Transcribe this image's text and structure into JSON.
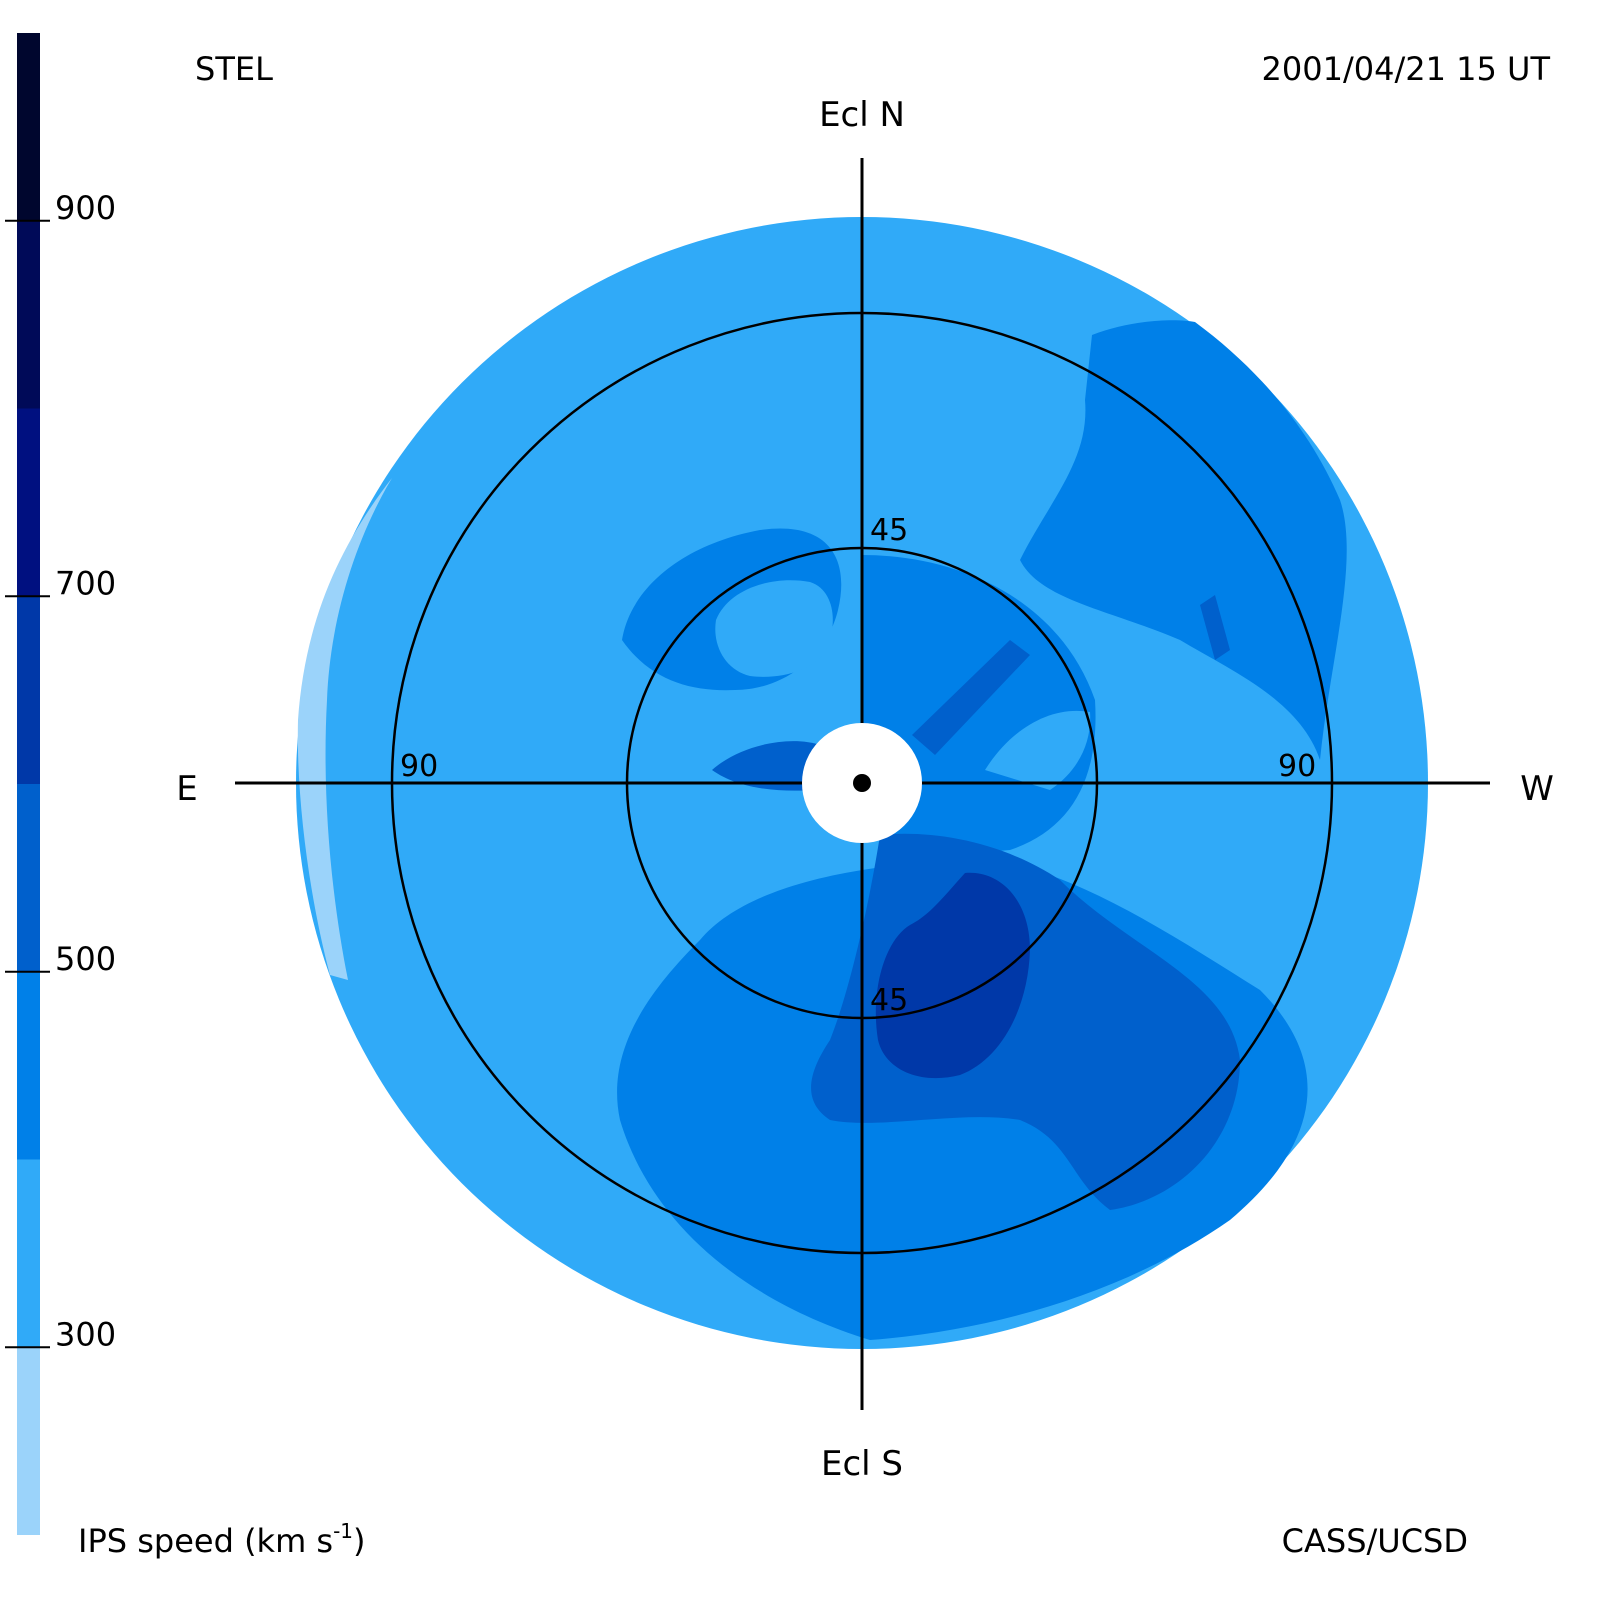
{
  "header": {
    "station": "STEL",
    "timestamp": "2001/04/21 15 UT"
  },
  "footer": {
    "credit": "CASS/UCSD"
  },
  "colorbar": {
    "label_main": "IPS speed (km s",
    "label_exp": "-1",
    "label_close": ")",
    "ticks": [
      "900",
      "700",
      "500",
      "300"
    ],
    "tick_values": [
      900,
      700,
      500,
      300
    ],
    "range": [
      200,
      1000
    ],
    "bands": [
      {
        "from": 200,
        "to": 300,
        "color": "#9bd3fa"
      },
      {
        "from": 300,
        "to": 400,
        "color": "#30aaf8"
      },
      {
        "from": 400,
        "to": 500,
        "color": "#0080e8"
      },
      {
        "from": 500,
        "to": 600,
        "color": "#0060cc"
      },
      {
        "from": 600,
        "to": 700,
        "color": "#0038a8"
      },
      {
        "from": 700,
        "to": 800,
        "color": "#001080"
      },
      {
        "from": 800,
        "to": 900,
        "color": "#000a58"
      },
      {
        "from": 900,
        "to": 1000,
        "color": "#00062e"
      }
    ]
  },
  "chart_data": {
    "type": "heatmap",
    "projection": "polar sky map centered on the Sun",
    "direction_labels": {
      "north": "Ecl N",
      "south": "Ecl S",
      "east": "E",
      "west": "W"
    },
    "elongation_circles": [
      45,
      90
    ],
    "ring_labels": {
      "inner_top": "45",
      "inner_bottom": "45",
      "outer_left": "90",
      "outer_right": "90"
    },
    "outer_limit_deg": 115,
    "colorbar_ticks": [
      900,
      700,
      500,
      300
    ],
    "dominant_speed_range": [
      300,
      400
    ],
    "fast_region_speed_range": [
      600,
      700
    ]
  }
}
